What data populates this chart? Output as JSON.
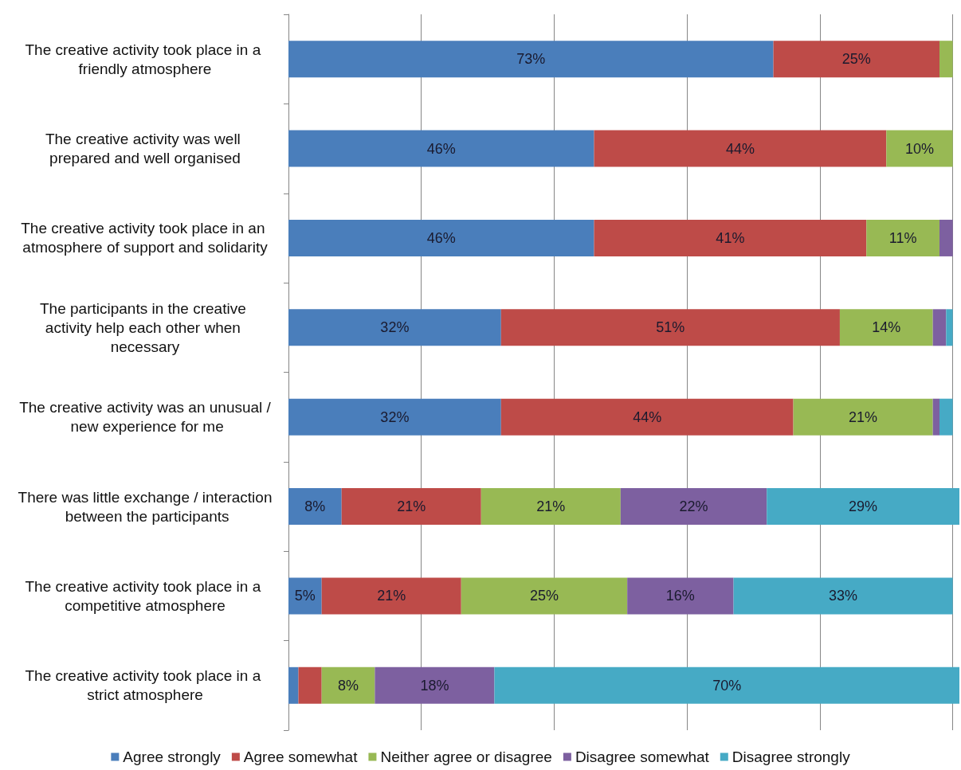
{
  "chart_data": {
    "type": "bar",
    "orientation": "horizontal",
    "stacked": true,
    "categories": [
      "The creative activity took place in a friendly atmosphere",
      "The creative activity was well prepared and well organised",
      "The creative activity took place in an atmosphere of support and solidarity",
      "The participants in the creative activity help each other when necessary",
      "The creative activity was an unusual / new experience for me",
      "There was little exchange / interaction between the participants",
      "The creative activity took place in a competitive atmosphere",
      "The creative activity took place in a strict atmosphere"
    ],
    "series": [
      {
        "name": "Agree strongly",
        "color": "#4a7ebb",
        "values": [
          73,
          46,
          46,
          32,
          32,
          8,
          5,
          1.5
        ],
        "value_labels": [
          "73%",
          "46%",
          "46%",
          "32%",
          "32%",
          "8%",
          "5%",
          null
        ]
      },
      {
        "name": "Agree somewhat",
        "color": "#be4b48",
        "values": [
          25,
          44,
          41,
          51,
          44,
          21,
          21,
          3.5
        ],
        "value_labels": [
          "25%",
          "44%",
          "41%",
          "51%",
          "44%",
          "21%",
          "21%",
          null
        ]
      },
      {
        "name": "Neither agree or disagree",
        "color": "#98b954",
        "values": [
          2,
          10,
          11,
          14,
          21,
          21,
          25,
          8
        ],
        "value_labels": [
          null,
          "10%",
          "11%",
          "14%",
          "21%",
          "21%",
          "25%",
          "8%"
        ]
      },
      {
        "name": "Disagree somewhat",
        "color": "#7d60a0",
        "values": [
          null,
          null,
          2,
          2,
          1,
          22,
          16,
          18
        ],
        "value_labels": [
          null,
          null,
          null,
          null,
          null,
          "22%",
          "16%",
          "18%"
        ]
      },
      {
        "name": "Disagree strongly",
        "color": "#46aac5",
        "values": [
          null,
          null,
          null,
          1,
          2,
          29,
          33,
          70
        ],
        "value_labels": [
          null,
          null,
          null,
          null,
          null,
          "29%",
          "33%",
          "70%"
        ]
      }
    ],
    "xlim": [
      0,
      101
    ],
    "xticks": [
      {
        "value": 0,
        "label": null
      },
      {
        "value": 20,
        "label": null
      },
      {
        "value": 40,
        "label": null
      },
      {
        "value": 60,
        "label": null
      },
      {
        "value": 80,
        "label": null
      },
      {
        "value": 100,
        "label": null
      }
    ],
    "tick_labels": "y",
    "grid": "x",
    "legend": "bottom"
  }
}
